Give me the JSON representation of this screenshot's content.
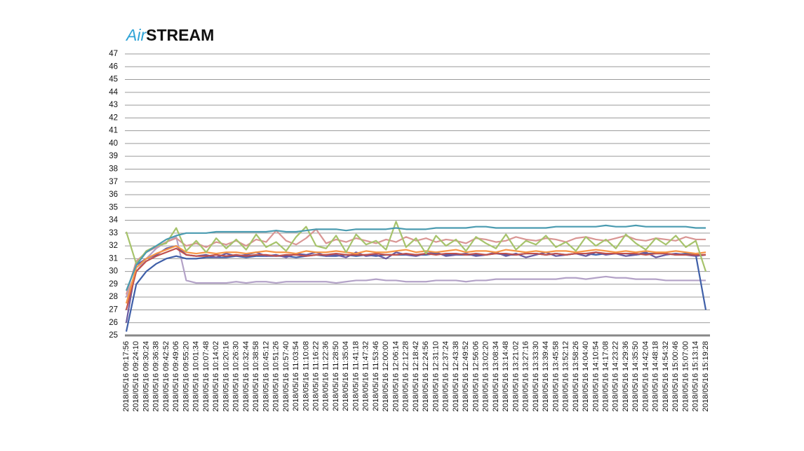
{
  "chart_data": {
    "type": "line",
    "title_parts": [
      "Air",
      "STREAM"
    ],
    "categories": [
      "2018/05/16 09:17:56",
      "2018/05/16 09:24:10",
      "2018/05/16 09:30:24",
      "2018/05/16 09:36:38",
      "2018/05/16 09:42:52",
      "2018/05/16 09:49:06",
      "2018/05/16 09:55:20",
      "2018/05/16 10:01:34",
      "2018/05/16 10:07:48",
      "2018/05/16 10:14:02",
      "2018/05/16 10:20:16",
      "2018/05/16 10:26:30",
      "2018/05/16 10:32:44",
      "2018/05/16 10:38:58",
      "2018/05/16 10:45:12",
      "2018/05/16 10:51:26",
      "2018/05/16 10:57:40",
      "2018/05/16 11:03:54",
      "2018/05/16 11:10:08",
      "2018/05/16 11:16:22",
      "2018/05/16 11:22:36",
      "2018/05/16 11:28:50",
      "2018/05/16 11:35:04",
      "2018/05/16 11:41:18",
      "2018/05/16 11:47:32",
      "2018/05/16 11:53:46",
      "2018/05/16 12:00:00",
      "2018/05/16 12:06:14",
      "2018/05/16 12:12:28",
      "2018/05/16 12:18:42",
      "2018/05/16 12:24:56",
      "2018/05/16 12:31:10",
      "2018/05/16 12:37:24",
      "2018/05/16 12:43:38",
      "2018/05/16 12:49:52",
      "2018/05/16 12:56:06",
      "2018/05/16 13:02:20",
      "2018/05/16 13:08:34",
      "2018/05/16 13:14:48",
      "2018/05/16 13:21:02",
      "2018/05/16 13:27:16",
      "2018/05/16 13:33:30",
      "2018/05/16 13:39:44",
      "2018/05/16 13:45:58",
      "2018/05/16 13:52:12",
      "2018/05/16 13:58:26",
      "2018/05/16 14:04:40",
      "2018/05/16 14:10:54",
      "2018/05/16 14:17:08",
      "2018/05/16 14:23:22",
      "2018/05/16 14:29:36",
      "2018/05/16 14:35:50",
      "2018/05/16 14:42:04",
      "2018/05/16 14:48:18",
      "2018/05/16 14:54:32",
      "2018/05/16 15:00:46",
      "2018/05/16 15:07:00",
      "2018/05/16 15:13:14",
      "2018/05/16 15:19:28"
    ],
    "series": [
      {
        "color": "#b3a2c7",
        "values": [
          28.0,
          30.0,
          31.0,
          31.8,
          32.3,
          32.7,
          29.3,
          29.1,
          29.1,
          29.1,
          29.1,
          29.2,
          29.1,
          29.2,
          29.2,
          29.1,
          29.2,
          29.2,
          29.2,
          29.2,
          29.2,
          29.1,
          29.2,
          29.3,
          29.3,
          29.4,
          29.3,
          29.3,
          29.2,
          29.2,
          29.2,
          29.3,
          29.3,
          29.3,
          29.2,
          29.3,
          29.3,
          29.4,
          29.4,
          29.4,
          29.4,
          29.4,
          29.4,
          29.4,
          29.5,
          29.5,
          29.4,
          29.5,
          29.6,
          29.5,
          29.5,
          29.4,
          29.4,
          29.4,
          29.3,
          29.3,
          29.3,
          29.3,
          29.3
        ]
      },
      {
        "color": "#d99694",
        "values": [
          28.2,
          30.8,
          31.5,
          31.9,
          32.3,
          32.6,
          32.0,
          32.2,
          31.9,
          32.3,
          32.1,
          32.4,
          32.0,
          32.5,
          32.3,
          33.2,
          32.4,
          32.1,
          32.6,
          33.3,
          32.2,
          32.5,
          32.3,
          32.6,
          32.4,
          32.2,
          32.5,
          32.3,
          32.7,
          32.4,
          32.6,
          32.3,
          32.5,
          32.4,
          32.2,
          32.6,
          32.5,
          32.3,
          32.4,
          32.7,
          32.5,
          32.4,
          32.6,
          32.5,
          32.3,
          32.6,
          32.7,
          32.5,
          32.4,
          32.6,
          32.8,
          32.5,
          32.4,
          32.6,
          32.5,
          32.4,
          32.7,
          32.5,
          32.5
        ]
      },
      {
        "color": "#3f5fa8",
        "values": [
          25.3,
          29.0,
          30.0,
          30.6,
          31.0,
          31.2,
          31.0,
          31.0,
          31.1,
          31.1,
          31.1,
          31.2,
          31.1,
          31.2,
          31.2,
          31.2,
          31.2,
          31.1,
          31.2,
          31.3,
          31.2,
          31.2,
          31.3,
          31.2,
          31.3,
          31.2,
          31.3,
          31.3,
          31.3,
          31.3,
          31.3,
          31.4,
          31.3,
          31.3,
          31.3,
          31.3,
          31.3,
          31.4,
          31.3,
          31.3,
          31.4,
          31.4,
          31.3,
          31.4,
          31.3,
          31.4,
          31.4,
          31.3,
          31.4,
          31.4,
          31.4,
          31.3,
          31.4,
          31.4,
          31.4,
          31.3,
          31.4,
          31.3,
          27.0
        ]
      },
      {
        "color": "#6a5aa0",
        "values": [
          26.0,
          30.5,
          31.0,
          31.3,
          31.8,
          32.0,
          31.3,
          31.2,
          31.3,
          31.1,
          31.4,
          31.2,
          31.3,
          31.5,
          31.2,
          31.3,
          31.1,
          31.4,
          31.3,
          31.5,
          31.2,
          31.3,
          31.1,
          31.5,
          31.2,
          31.3,
          31.0,
          31.5,
          31.3,
          31.2,
          31.4,
          31.5,
          31.2,
          31.3,
          31.4,
          31.2,
          31.3,
          31.5,
          31.2,
          31.4,
          31.1,
          31.3,
          31.5,
          31.2,
          31.3,
          31.4,
          31.2,
          31.5,
          31.3,
          31.4,
          31.2,
          31.3,
          31.5,
          31.1,
          31.3,
          31.4,
          31.3,
          31.2,
          31.3
        ]
      },
      {
        "color": "#c0504d",
        "values": [
          27.0,
          30.0,
          30.8,
          31.2,
          31.5,
          31.8,
          31.3,
          31.2,
          31.2,
          31.3,
          31.2,
          31.3,
          31.2,
          31.3,
          31.3,
          31.2,
          31.3,
          31.3,
          31.2,
          31.3,
          31.3,
          31.4,
          31.3,
          31.3,
          31.3,
          31.4,
          31.3,
          31.3,
          31.4,
          31.3,
          31.4,
          31.3,
          31.4,
          31.4,
          31.3,
          31.4,
          31.3,
          31.4,
          31.4,
          31.3,
          31.4,
          31.4,
          31.3,
          31.4,
          31.3,
          31.4,
          31.4,
          31.5,
          31.4,
          31.4,
          31.4,
          31.4,
          31.3,
          31.4,
          31.4,
          31.3,
          31.3,
          31.3,
          31.3
        ]
      },
      {
        "color": "#f79646",
        "values": [
          27.5,
          30.3,
          31.0,
          31.4,
          31.7,
          32.0,
          31.5,
          31.4,
          31.5,
          31.4,
          31.5,
          31.5,
          31.4,
          31.5,
          31.6,
          31.5,
          31.5,
          31.4,
          31.6,
          31.5,
          31.5,
          31.6,
          31.5,
          31.4,
          31.6,
          31.5,
          31.5,
          31.6,
          31.7,
          31.5,
          31.6,
          31.5,
          31.6,
          31.7,
          31.5,
          31.6,
          31.6,
          31.5,
          31.7,
          31.6,
          31.5,
          31.6,
          31.5,
          31.6,
          31.6,
          31.5,
          31.6,
          31.7,
          31.6,
          31.5,
          31.6,
          31.5,
          31.6,
          31.5,
          31.5,
          31.6,
          31.5,
          31.4,
          31.5
        ]
      },
      {
        "color": "#a6c36b",
        "values": [
          33.1,
          30.6,
          31.6,
          32.0,
          32.2,
          33.4,
          31.6,
          32.4,
          31.5,
          32.6,
          31.8,
          32.5,
          31.7,
          32.9,
          31.9,
          32.3,
          31.6,
          32.7,
          33.5,
          32.0,
          31.8,
          32.8,
          31.5,
          32.9,
          32.1,
          32.4,
          31.7,
          33.9,
          31.9,
          32.6,
          31.4,
          32.8,
          32.0,
          32.5,
          31.6,
          32.7,
          32.2,
          31.8,
          32.9,
          31.7,
          32.4,
          32.1,
          32.8,
          31.9,
          32.3,
          31.6,
          32.7,
          32.0,
          32.5,
          31.8,
          32.9,
          32.2,
          31.7,
          32.6,
          32.1,
          32.8,
          31.9,
          32.4,
          30.0
        ]
      },
      {
        "color": "#4a9bb0",
        "values": [
          28.5,
          30.5,
          31.5,
          32.0,
          32.5,
          32.8,
          33.0,
          33.0,
          33.0,
          33.1,
          33.1,
          33.1,
          33.1,
          33.1,
          33.1,
          33.2,
          33.1,
          33.1,
          33.2,
          33.3,
          33.3,
          33.3,
          33.2,
          33.3,
          33.3,
          33.3,
          33.3,
          33.4,
          33.3,
          33.3,
          33.3,
          33.4,
          33.4,
          33.4,
          33.4,
          33.5,
          33.5,
          33.4,
          33.4,
          33.4,
          33.4,
          33.4,
          33.4,
          33.5,
          33.5,
          33.5,
          33.5,
          33.5,
          33.6,
          33.5,
          33.5,
          33.6,
          33.5,
          33.5,
          33.5,
          33.5,
          33.5,
          33.4,
          33.4
        ]
      }
    ],
    "ylim": [
      25,
      47
    ],
    "yticks": [
      25,
      26,
      27,
      28,
      29,
      30,
      31,
      32,
      33,
      34,
      35,
      36,
      37,
      38,
      39,
      40,
      41,
      42,
      43,
      44,
      45,
      46,
      47
    ],
    "grid": true
  }
}
